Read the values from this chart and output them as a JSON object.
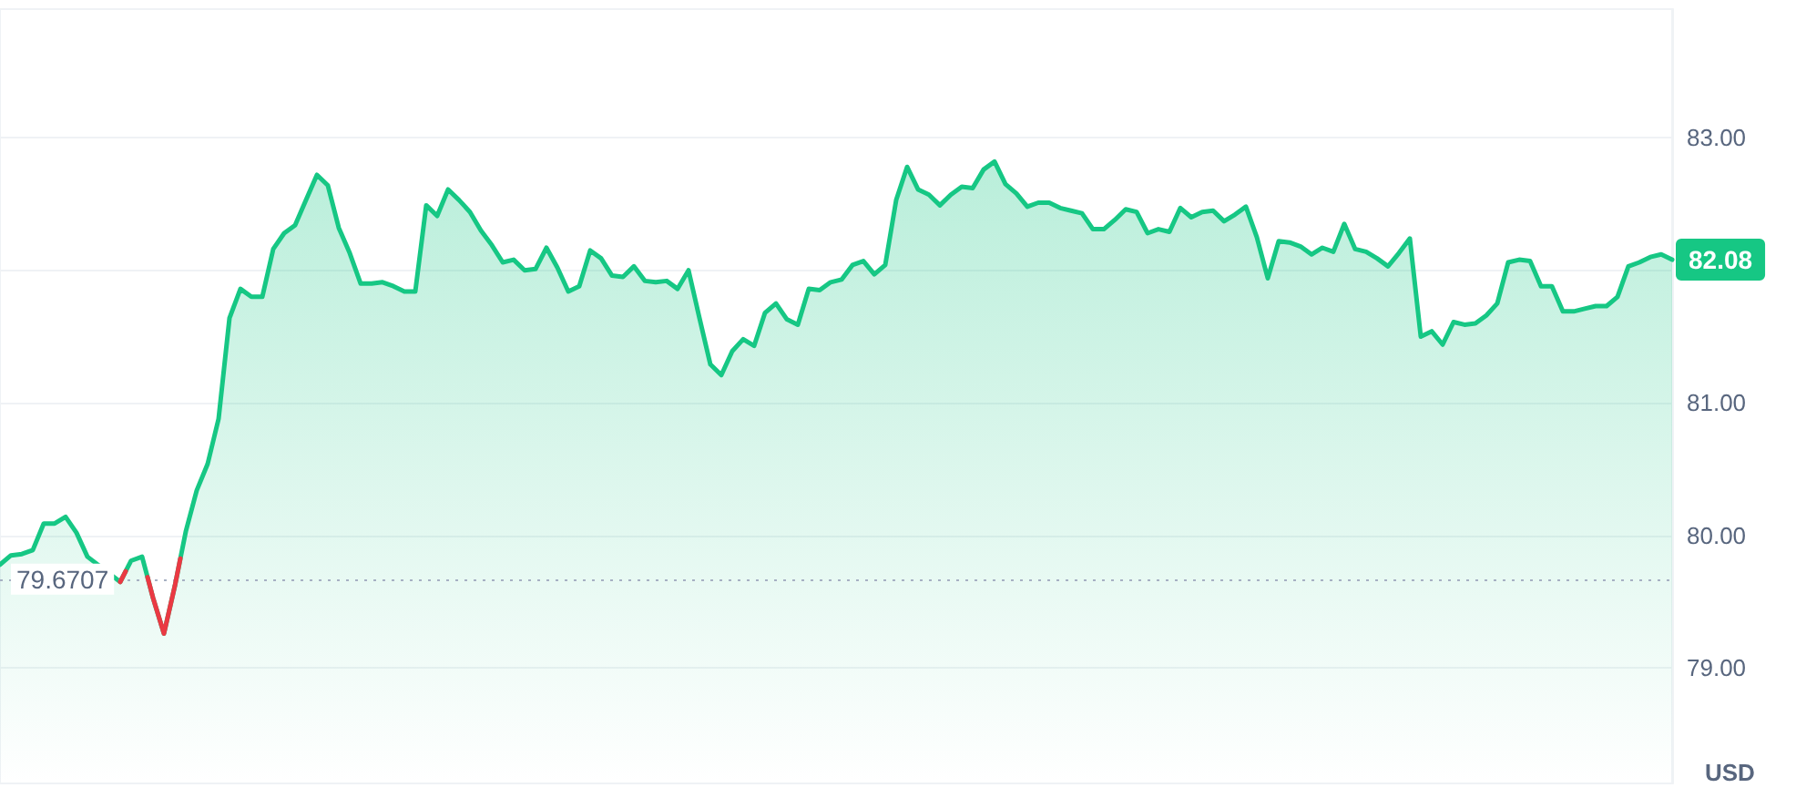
{
  "chart_data": {
    "type": "area",
    "ylabel": "USD",
    "categories": [
      null,
      null,
      null,
      null,
      null,
      null,
      null,
      null,
      null,
      null,
      null,
      null,
      null,
      null,
      null,
      null,
      null,
      null,
      null,
      null,
      null,
      null,
      null,
      null,
      null,
      null,
      null,
      null,
      null,
      null,
      null,
      null,
      null,
      null,
      null,
      null,
      null,
      null,
      null,
      null,
      null,
      null,
      null,
      null,
      null,
      null,
      null,
      null,
      null,
      null,
      null,
      null,
      null,
      null,
      null,
      null,
      null,
      null,
      null,
      null,
      null,
      null,
      null,
      null,
      null,
      null,
      null,
      null,
      null,
      null,
      null,
      null,
      null,
      null,
      null,
      null,
      null,
      null,
      null,
      null,
      null,
      null,
      null,
      null,
      null,
      null,
      null,
      null,
      null,
      null,
      null,
      null,
      null,
      null,
      null,
      null,
      null,
      null,
      null,
      null,
      null,
      null,
      null,
      null,
      null,
      null,
      null,
      null,
      null,
      null,
      null,
      null,
      null,
      null,
      null,
      null,
      null,
      null,
      null,
      null,
      null,
      null,
      null,
      null,
      null,
      null,
      null,
      null,
      null,
      null,
      null,
      null,
      null,
      null,
      null,
      null,
      null,
      null,
      null,
      null,
      null,
      null,
      null,
      null,
      null,
      null,
      null,
      null,
      null,
      null,
      null,
      null,
      null,
      null
    ],
    "series": [
      {
        "color": "#16c784",
        "values": [
          79.78,
          79.85,
          79.86,
          79.89,
          80.09,
          80.09,
          80.14,
          80.02,
          79.84,
          null,
          null,
          79.65,
          79.81,
          79.84,
          79.53,
          79.26,
          79.62,
          80.03,
          80.34,
          80.54,
          80.88,
          81.64,
          81.86,
          81.8,
          81.8,
          82.16,
          82.28,
          82.34,
          82.53,
          82.72,
          82.64,
          82.32,
          82.13,
          81.9,
          81.9,
          81.91,
          81.88,
          81.84,
          81.84,
          82.49,
          82.41,
          82.61,
          82.53,
          82.44,
          82.3,
          82.19,
          82.06,
          82.08,
          82.0,
          82.01,
          82.17,
          82.02,
          81.84,
          81.88,
          82.15,
          82.09,
          81.96,
          81.95,
          82.03,
          81.92,
          81.91,
          81.92,
          81.86,
          82.0,
          81.64,
          81.29,
          81.21,
          81.39,
          81.48,
          81.43,
          81.68,
          81.75,
          81.63,
          81.59,
          81.86,
          81.85,
          81.91,
          81.93,
          82.04,
          82.07,
          81.97,
          82.04,
          82.53,
          82.78,
          82.61,
          82.57,
          82.49,
          82.57,
          82.63,
          82.62,
          82.76,
          82.82,
          82.65,
          82.58,
          82.48,
          82.51,
          82.51,
          82.47,
          82.45,
          82.43,
          82.31,
          82.31,
          82.38,
          82.46,
          82.44,
          82.28,
          82.31,
          82.29,
          82.47,
          82.4,
          82.44,
          82.45,
          82.37,
          82.42,
          82.48,
          82.25,
          81.94,
          82.22,
          82.21,
          82.18,
          82.12,
          82.17,
          82.14,
          82.35,
          82.16,
          82.14,
          82.09,
          82.03,
          82.13,
          82.24,
          81.5,
          81.54,
          81.44,
          81.61,
          81.59,
          81.6,
          81.66,
          81.75,
          82.06,
          82.08,
          82.07,
          81.88,
          81.88,
          81.69,
          81.69,
          81.71,
          81.73,
          81.73,
          81.8,
          82.03,
          82.06,
          82.1,
          82.12,
          82.08
        ],
        "colors": [
          "#16c784",
          "#16c784",
          "#16c784",
          "#16c784",
          "#16c784",
          "#16c784",
          "#16c784",
          "#16c784",
          "#16c784",
          "#16c784",
          "#16c784",
          "#ea3943",
          "#16c784",
          "#16c784",
          "#ea3943",
          "#ea3943",
          "#ea3943",
          "#16c784",
          "#16c784",
          "#16c784",
          "#16c784",
          "#16c784",
          "#16c784",
          "#16c784",
          "#16c784",
          "#16c784",
          "#16c784",
          "#16c784",
          "#16c784",
          "#16c784",
          "#16c784",
          "#16c784",
          "#16c784",
          "#16c784",
          "#16c784",
          "#16c784",
          "#16c784",
          "#16c784",
          "#16c784",
          "#16c784",
          "#16c784",
          "#16c784",
          "#16c784",
          "#16c784",
          "#16c784",
          "#16c784",
          "#16c784",
          "#16c784",
          "#16c784",
          "#16c784",
          "#16c784",
          "#16c784",
          "#16c784",
          "#16c784",
          "#16c784",
          "#16c784",
          "#16c784",
          "#16c784",
          "#16c784",
          "#16c784",
          "#16c784",
          "#16c784",
          "#16c784",
          "#16c784",
          "#16c784",
          "#16c784",
          "#16c784",
          "#16c784",
          "#16c784",
          "#16c784",
          "#16c784",
          "#16c784",
          "#16c784",
          "#16c784",
          "#16c784",
          "#16c784",
          "#16c784",
          "#16c784",
          "#16c784",
          "#16c784",
          "#16c784",
          "#16c784",
          "#16c784",
          "#16c784",
          "#16c784",
          "#16c784",
          "#16c784",
          "#16c784",
          "#16c784",
          "#16c784",
          "#16c784",
          "#16c784",
          "#16c784",
          "#16c784",
          "#16c784",
          "#16c784",
          "#16c784",
          "#16c784",
          "#16c784",
          "#16c784",
          "#16c784",
          "#16c784",
          "#16c784",
          "#16c784",
          "#16c784",
          "#16c784",
          "#16c784",
          "#16c784",
          "#16c784",
          "#16c784",
          "#16c784",
          "#16c784",
          "#16c784",
          "#16c784",
          "#16c784",
          "#16c784",
          "#16c784",
          "#16c784",
          "#16c784",
          "#16c784",
          "#16c784",
          "#16c784",
          "#16c784",
          "#16c784",
          "#16c784",
          "#16c784",
          "#16c784",
          "#16c784",
          "#16c784",
          "#16c784",
          "#16c784",
          "#16c784",
          "#16c784",
          "#16c784",
          "#16c784",
          "#16c784",
          "#16c784",
          "#16c784",
          "#16c784",
          "#16c784",
          "#16c784",
          "#16c784",
          "#16c784",
          "#16c784",
          "#16c784",
          "#16c784",
          "#16c784",
          "#16c784",
          "#16c784",
          "#16c784",
          "#16c784",
          "#16c784",
          "#16c784",
          "#16c784"
        ],
        "value_labels": [
          null,
          null,
          null,
          null,
          null,
          null,
          null,
          null,
          null,
          null,
          null,
          null,
          null,
          null,
          null,
          null,
          null,
          null,
          null,
          null,
          null,
          null,
          null,
          null,
          null,
          null,
          null,
          null,
          null,
          null,
          null,
          null,
          null,
          null,
          null,
          null,
          null,
          null,
          null,
          null,
          null,
          null,
          null,
          null,
          null,
          null,
          null,
          null,
          null,
          null,
          null,
          null,
          null,
          null,
          null,
          null,
          null,
          null,
          null,
          null,
          null,
          null,
          null,
          null,
          null,
          null,
          null,
          null,
          null,
          null,
          null,
          null,
          null,
          null,
          null,
          null,
          null,
          null,
          null,
          null,
          null,
          null,
          null,
          null,
          null,
          null,
          null,
          null,
          null,
          null,
          null,
          null,
          null,
          null,
          null,
          null,
          null,
          null,
          null,
          null,
          null,
          null,
          null,
          null,
          null,
          null,
          null,
          null,
          null,
          null,
          null,
          null,
          null,
          null,
          null,
          null,
          null,
          null,
          null,
          null,
          null,
          null,
          null,
          null,
          null,
          null,
          null,
          null,
          null,
          null,
          null,
          null,
          null,
          null,
          null,
          null,
          null,
          null,
          null,
          null,
          null,
          null,
          null,
          null,
          null,
          null,
          null,
          null,
          null,
          null,
          null,
          null,
          null,
          "82.08"
        ]
      }
    ],
    "ylim": [
      78.13,
      83.97
    ],
    "yticks": [
      {
        "value": 79,
        "label": "79.00"
      },
      {
        "value": 80,
        "label": "80.00"
      },
      {
        "value": 81,
        "label": "81.00"
      },
      {
        "value": 82,
        "label": null
      },
      {
        "value": 83,
        "label": "83.00"
      }
    ],
    "ref_lines": [
      {
        "axis": "y",
        "value": 79.6707,
        "label": "79.6707",
        "color": "#a6b0c3",
        "line_style": "dotted"
      }
    ],
    "grid": "y",
    "marker": "none",
    "line_style": "solid",
    "tick_labels": "y"
  }
}
